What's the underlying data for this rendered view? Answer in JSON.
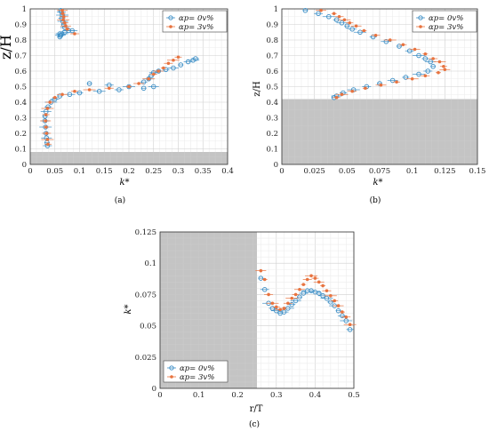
{
  "chart_data": [
    {
      "type": "scatter",
      "panel_label": "(a)",
      "xlabel": "k*",
      "ylabel": "z/H",
      "xlim": [
        0,
        0.4
      ],
      "ylim": [
        0,
        1
      ],
      "xticks": [
        "0",
        "0.05",
        "0.1",
        "0.15",
        "0.2",
        "0.25",
        "0.3",
        "0.35",
        "0.4"
      ],
      "yticks": [
        "0",
        "0.1",
        "0.2",
        "0.3",
        "0.4",
        "0.5",
        "0.6",
        "0.7",
        "0.8",
        "0.9",
        "1"
      ],
      "grid": true,
      "legend_position": "top-right",
      "shaded_region": {
        "y_from": 0,
        "y_to": 0.08
      },
      "series": [
        {
          "name": "αp= 0v%",
          "marker": "open-circle",
          "color": "#3d8fc6",
          "x": [
            0.062,
            0.063,
            0.065,
            0.064,
            0.066,
            0.068,
            0.07,
            0.078,
            0.06,
            0.061,
            0.06,
            0.062,
            0.064,
            0.07,
            0.085,
            0.12,
            0.16,
            0.2,
            0.23,
            0.24,
            0.245,
            0.25,
            0.26,
            0.275,
            0.29,
            0.305,
            0.32,
            0.33,
            0.335,
            0.25,
            0.23,
            0.18,
            0.14,
            0.1,
            0.08,
            0.06,
            0.05,
            0.042,
            0.036,
            0.032,
            0.03,
            0.03,
            0.031,
            0.032,
            0.033,
            0.034,
            0.035
          ],
          "y": [
            0.99,
            0.98,
            0.96,
            0.94,
            0.92,
            0.9,
            0.88,
            0.86,
            0.84,
            0.83,
            0.82,
            0.83,
            0.84,
            0.85,
            0.86,
            0.52,
            0.51,
            0.5,
            0.53,
            0.55,
            0.57,
            0.59,
            0.6,
            0.61,
            0.62,
            0.64,
            0.66,
            0.67,
            0.68,
            0.5,
            0.49,
            0.48,
            0.47,
            0.46,
            0.45,
            0.44,
            0.42,
            0.4,
            0.37,
            0.34,
            0.31,
            0.28,
            0.24,
            0.2,
            0.17,
            0.14,
            0.12
          ]
        },
        {
          "name": "αp= 3v%",
          "marker": "filled-dot",
          "color": "#e8733f",
          "x": [
            0.065,
            0.066,
            0.068,
            0.067,
            0.07,
            0.072,
            0.075,
            0.09,
            0.24,
            0.25,
            0.26,
            0.27,
            0.28,
            0.29,
            0.3,
            0.22,
            0.2,
            0.16,
            0.12,
            0.09,
            0.065,
            0.05,
            0.04,
            0.035,
            0.032,
            0.031,
            0.032,
            0.033,
            0.035,
            0.036
          ],
          "y": [
            0.99,
            0.97,
            0.95,
            0.93,
            0.91,
            0.89,
            0.87,
            0.84,
            0.55,
            0.58,
            0.6,
            0.62,
            0.65,
            0.67,
            0.69,
            0.52,
            0.5,
            0.49,
            0.48,
            0.47,
            0.45,
            0.43,
            0.4,
            0.36,
            0.32,
            0.28,
            0.24,
            0.2,
            0.16,
            0.13
          ]
        }
      ]
    },
    {
      "type": "scatter",
      "panel_label": "(b)",
      "xlabel": "k*",
      "ylabel": "z/H",
      "xlim": [
        0,
        0.15
      ],
      "ylim": [
        0,
        1
      ],
      "xticks": [
        "0",
        "0.025",
        "0.05",
        "0.075",
        "0.1",
        "0.125",
        "0.15"
      ],
      "yticks": [
        "0",
        "0.1",
        "0.2",
        "0.3",
        "0.4",
        "0.5",
        "0.6",
        "0.7",
        "0.8",
        "0.9",
        "1"
      ],
      "grid": true,
      "legend_position": "top-right",
      "shaded_region": {
        "y_from": 0,
        "y_to": 0.42
      },
      "series": [
        {
          "name": "αp= 0v%",
          "marker": "open-circle",
          "color": "#3d8fc6",
          "x": [
            0.018,
            0.028,
            0.036,
            0.042,
            0.046,
            0.05,
            0.054,
            0.06,
            0.07,
            0.08,
            0.09,
            0.098,
            0.105,
            0.11,
            0.114,
            0.116,
            0.112,
            0.105,
            0.095,
            0.085,
            0.075,
            0.065,
            0.055,
            0.047,
            0.042,
            0.04
          ],
          "y": [
            0.99,
            0.97,
            0.95,
            0.93,
            0.91,
            0.89,
            0.87,
            0.85,
            0.82,
            0.79,
            0.76,
            0.73,
            0.7,
            0.68,
            0.66,
            0.63,
            0.6,
            0.58,
            0.56,
            0.54,
            0.52,
            0.5,
            0.48,
            0.46,
            0.44,
            0.43
          ]
        },
        {
          "name": "αp= 3v%",
          "marker": "filled-dot",
          "color": "#e8733f",
          "x": [
            0.03,
            0.04,
            0.044,
            0.048,
            0.052,
            0.057,
            0.063,
            0.072,
            0.083,
            0.093,
            0.102,
            0.11,
            0.116,
            0.121,
            0.124,
            0.125,
            0.12,
            0.11,
            0.1,
            0.088,
            0.076,
            0.064,
            0.054,
            0.046,
            0.042
          ],
          "y": [
            0.99,
            0.97,
            0.95,
            0.93,
            0.91,
            0.89,
            0.86,
            0.83,
            0.8,
            0.77,
            0.74,
            0.71,
            0.68,
            0.66,
            0.63,
            0.61,
            0.59,
            0.57,
            0.55,
            0.53,
            0.51,
            0.49,
            0.47,
            0.45,
            0.43
          ]
        }
      ]
    },
    {
      "type": "scatter",
      "panel_label": "(c)",
      "xlabel": "r/T",
      "ylabel": "k*",
      "xlim": [
        0,
        0.5
      ],
      "ylim": [
        0,
        0.125
      ],
      "xticks": [
        "0",
        "0.1",
        "0.2",
        "0.3",
        "0.4",
        "0.5"
      ],
      "yticks": [
        "0",
        "0.025",
        "0.05",
        "0.075",
        "0.1",
        "0.125"
      ],
      "grid": true,
      "legend_position": "bottom-left",
      "shaded_region": {
        "x_from": 0,
        "x_to": 0.25
      },
      "series": [
        {
          "name": "αp= 0v%",
          "marker": "open-circle",
          "color": "#3d8fc6",
          "x": [
            0.26,
            0.27,
            0.28,
            0.29,
            0.3,
            0.31,
            0.32,
            0.33,
            0.34,
            0.35,
            0.36,
            0.37,
            0.38,
            0.39,
            0.4,
            0.41,
            0.42,
            0.43,
            0.44,
            0.45,
            0.46,
            0.47,
            0.48,
            0.49
          ],
          "y": [
            0.088,
            0.079,
            0.068,
            0.064,
            0.062,
            0.06,
            0.061,
            0.064,
            0.067,
            0.07,
            0.073,
            0.076,
            0.078,
            0.078,
            0.077,
            0.076,
            0.074,
            0.072,
            0.069,
            0.066,
            0.062,
            0.058,
            0.054,
            0.047
          ]
        },
        {
          "name": "αp= 3v%",
          "marker": "filled-dot",
          "color": "#e8733f",
          "x": [
            0.26,
            0.27,
            0.28,
            0.29,
            0.3,
            0.31,
            0.32,
            0.33,
            0.34,
            0.35,
            0.36,
            0.37,
            0.38,
            0.39,
            0.4,
            0.41,
            0.42,
            0.43,
            0.44,
            0.45,
            0.46,
            0.47,
            0.48,
            0.49
          ],
          "y": [
            0.094,
            0.087,
            0.075,
            0.068,
            0.065,
            0.063,
            0.064,
            0.068,
            0.072,
            0.075,
            0.079,
            0.083,
            0.087,
            0.09,
            0.088,
            0.085,
            0.082,
            0.078,
            0.074,
            0.07,
            0.066,
            0.061,
            0.057,
            0.051
          ]
        }
      ]
    }
  ]
}
